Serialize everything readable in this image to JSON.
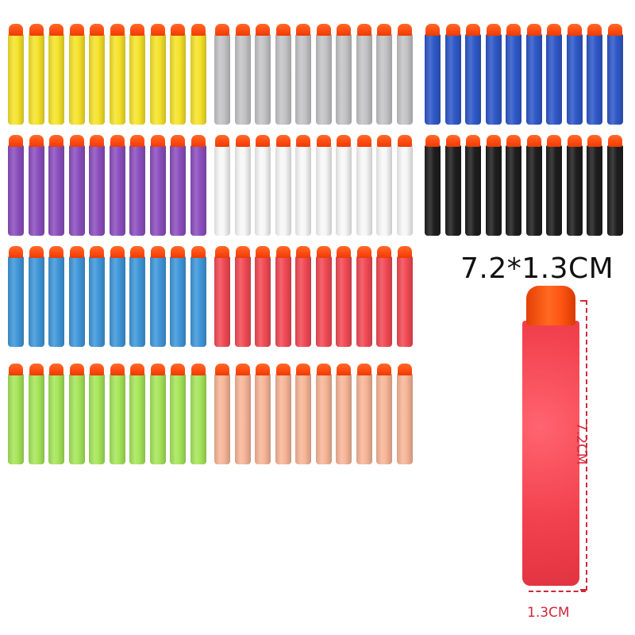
{
  "product": {
    "size_label": "7.2*1.3CM",
    "length_label": "7.2CM",
    "width_label": "1.3CM",
    "tip_color": "#ff5a1a"
  },
  "dart_groups": [
    {
      "color_name": "yellow",
      "body_color": "#f6e32a",
      "count": 10
    },
    {
      "color_name": "gray",
      "body_color": "#c4c4c6",
      "count": 10
    },
    {
      "color_name": "blue",
      "body_color": "#2e58c8",
      "count": 10
    },
    {
      "color_name": "purple",
      "body_color": "#8c4fbf",
      "count": 10
    },
    {
      "color_name": "white",
      "body_color": "#f7f7f7",
      "count": 10
    },
    {
      "color_name": "black",
      "body_color": "#1e1e1e",
      "count": 10
    },
    {
      "color_name": "light-blue",
      "body_color": "#3f97da",
      "count": 10
    },
    {
      "color_name": "red",
      "body_color": "#f24a55",
      "count": 10
    },
    {
      "color_name": "lime",
      "body_color": "#a6e65a",
      "count": 10
    },
    {
      "color_name": "peach",
      "body_color": "#f8b698",
      "count": 10
    }
  ],
  "featured_dart": {
    "color_name": "red",
    "body_color": "#f24a55"
  }
}
